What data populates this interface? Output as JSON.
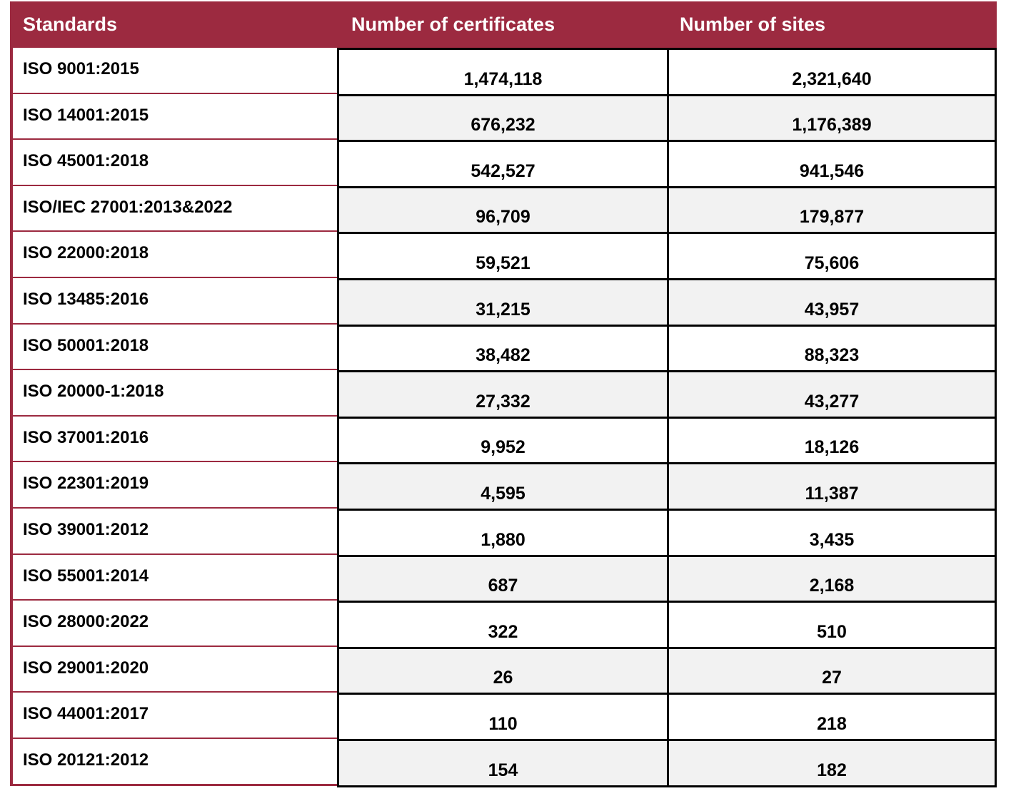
{
  "table": {
    "headers": [
      "Standards",
      "Number of certificates",
      "Number of sites"
    ],
    "rows": [
      [
        "ISO 9001:2015",
        "1,474,118",
        "2,321,640"
      ],
      [
        "ISO 14001:2015",
        "676,232",
        "1,176,389"
      ],
      [
        "ISO 45001:2018",
        "542,527",
        "941,546"
      ],
      [
        "ISO/IEC 27001:2013&2022",
        "96,709",
        "179,877"
      ],
      [
        "ISO 22000:2018",
        "59,521",
        "75,606"
      ],
      [
        "ISO 13485:2016",
        "31,215",
        "43,957"
      ],
      [
        "ISO 50001:2018",
        "38,482",
        "88,323"
      ],
      [
        "ISO 20000-1:2018",
        "27,332",
        "43,277"
      ],
      [
        "ISO 37001:2016",
        "9,952",
        "18,126"
      ],
      [
        "ISO 22301:2019",
        "4,595",
        "11,387"
      ],
      [
        "ISO 39001:2012",
        "1,880",
        "3,435"
      ],
      [
        "ISO 55001:2014",
        "687",
        "2,168"
      ],
      [
        "ISO 28000:2022",
        "322",
        "510"
      ],
      [
        "ISO 29001:2020",
        "26",
        "27"
      ],
      [
        "ISO 44001:2017",
        "110",
        "218"
      ],
      [
        "ISO 20121:2012",
        "154",
        "182"
      ]
    ]
  },
  "colors": {
    "header_bg": "#9c2a40",
    "alt_row_bg": "#f2f2f2"
  }
}
